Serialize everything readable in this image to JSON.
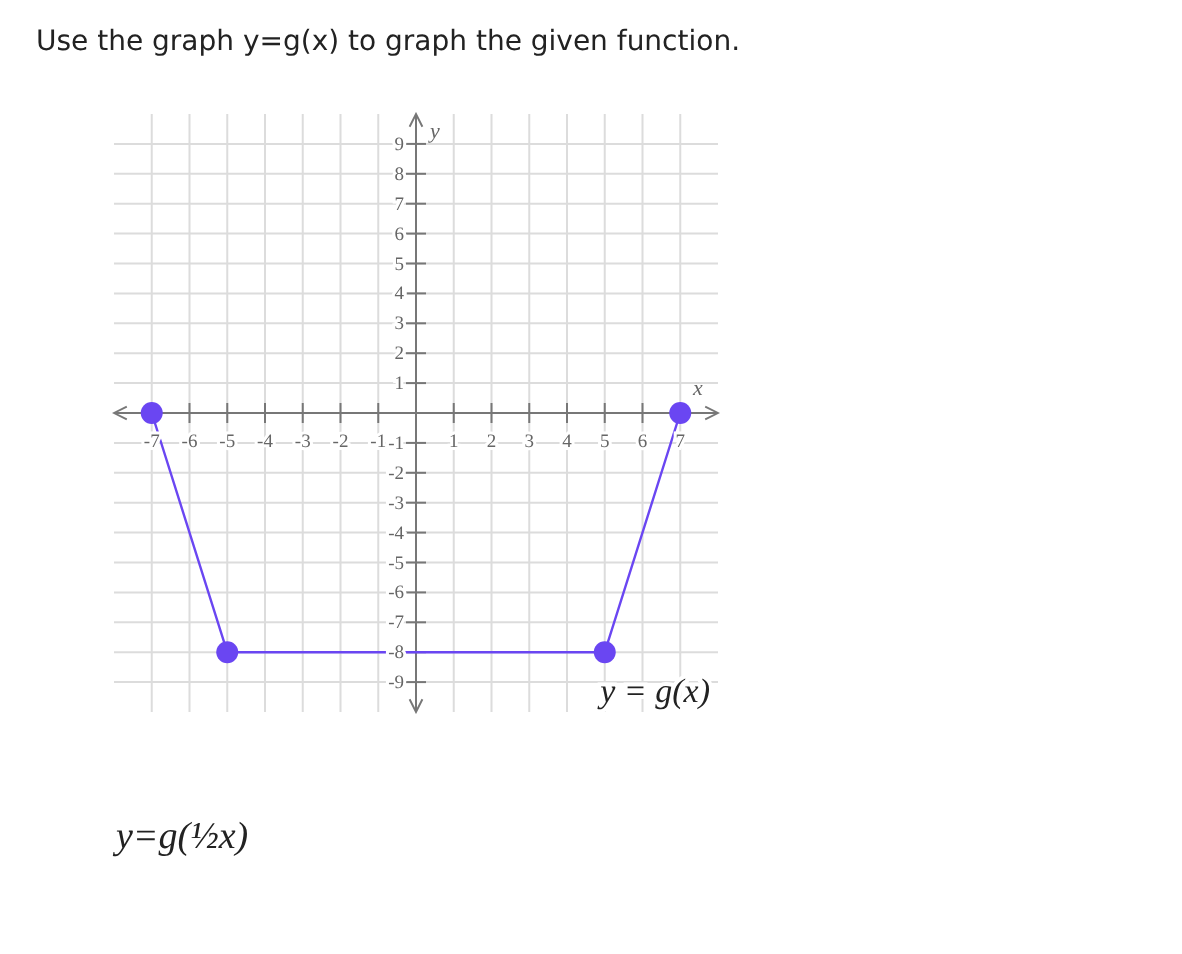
{
  "chart_data": {
    "type": "line",
    "title": "Use the graph y=g(x) to graph the given function.",
    "xlabel": "x",
    "ylabel": "y",
    "x": [
      -7,
      -5,
      5,
      7
    ],
    "series": [
      {
        "name": "y = g(x)",
        "color": "#6a46f2",
        "values": [
          0,
          -8,
          -8,
          0
        ]
      }
    ],
    "xlim": [
      -8,
      8
    ],
    "ylim": [
      -10,
      10
    ],
    "xticks": [
      -7,
      -6,
      -5,
      -4,
      -3,
      -2,
      -1,
      1,
      2,
      3,
      4,
      5,
      6,
      7
    ],
    "yticks": [
      -9,
      -8,
      -7,
      -6,
      -5,
      -4,
      -3,
      -2,
      -1,
      1,
      2,
      3,
      4,
      5,
      6,
      7,
      8,
      9
    ],
    "grid": true,
    "legend": false,
    "marker": "circle",
    "line_style": "solid",
    "annotations": [
      "y=g(½x)"
    ]
  }
}
